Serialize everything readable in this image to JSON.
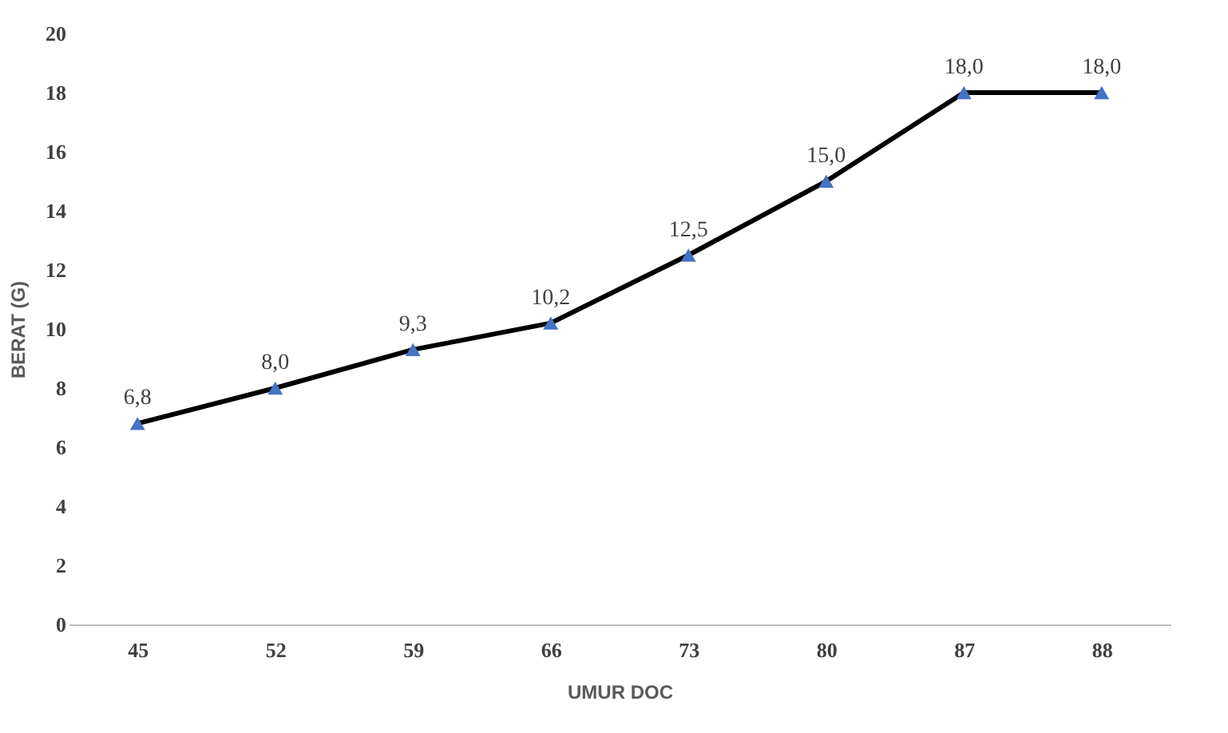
{
  "chart_data": {
    "type": "line",
    "xlabel": "UMUR DOC",
    "ylabel": "BERAT (G)",
    "categories": [
      "45",
      "52",
      "59",
      "66",
      "73",
      "80",
      "87",
      "88"
    ],
    "series": [
      {
        "color": "#000000",
        "colors": [
          "#4472c4",
          "#4472c4",
          "#4472c4",
          "#4472c4",
          "#4472c4",
          "#4472c4",
          "#4472c4",
          "#4472c4"
        ],
        "values": [
          6.8,
          8.0,
          9.3,
          10.2,
          12.5,
          15.0,
          18.0,
          18.0
        ],
        "value_labels": [
          "6,8",
          "8,0",
          "9,3",
          "10,2",
          "12,5",
          "15,0",
          "18,0",
          "18,0"
        ]
      }
    ],
    "ylim": [
      0,
      20
    ],
    "yticks": [
      0,
      2,
      4,
      6,
      8,
      10,
      12,
      14,
      16,
      18,
      20
    ],
    "grid": false,
    "marker": "triangle",
    "line_style": "solid"
  }
}
